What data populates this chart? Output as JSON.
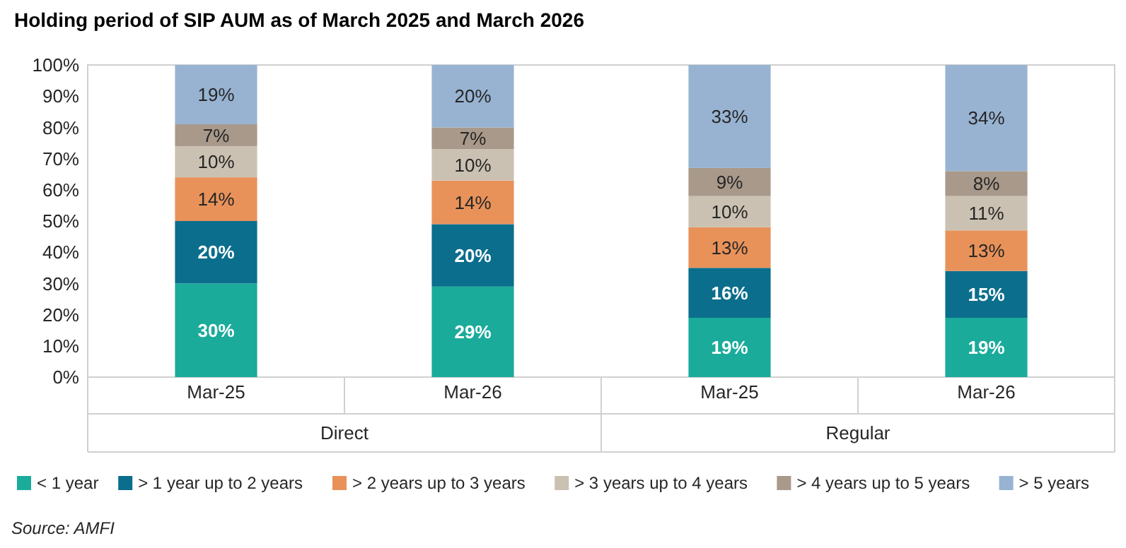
{
  "chart_data": {
    "type": "bar",
    "title": "Holding period of SIP AUM as of March 2025 and March 2026",
    "categories": [
      "Mar-25",
      "Mar-26",
      "Mar-25",
      "Mar-26"
    ],
    "stacked": true,
    "ylim": [
      0,
      100
    ],
    "yticks": [
      {
        "value": 0,
        "label": "0%"
      },
      {
        "value": 10,
        "label": "10%"
      },
      {
        "value": 20,
        "label": "20%"
      },
      {
        "value": 30,
        "label": "30%"
      },
      {
        "value": 40,
        "label": "40%"
      },
      {
        "value": 50,
        "label": "50%"
      },
      {
        "value": 60,
        "label": "60%"
      },
      {
        "value": 70,
        "label": "70%"
      },
      {
        "value": 80,
        "label": "80%"
      },
      {
        "value": 90,
        "label": "90%"
      },
      {
        "value": 100,
        "label": "100%"
      }
    ],
    "grid": false,
    "legend": "bottom",
    "series": [
      {
        "name": "< 1 year",
        "color": "#1aab9b",
        "values": [
          30,
          29,
          19,
          19
        ],
        "value_labels": [
          "30%",
          "29%",
          "19%",
          "19%"
        ]
      },
      {
        "name": "> 1 year up to 2 years",
        "color": "#0b6e8c",
        "values": [
          20,
          20,
          16,
          15
        ],
        "value_labels": [
          "20%",
          "20%",
          "16%",
          "15%"
        ]
      },
      {
        "name": "> 2 years up to 3 years",
        "color": "#e8925a",
        "values": [
          14,
          14,
          13,
          13
        ],
        "value_labels": [
          "14%",
          "14%",
          "13%",
          "13%"
        ]
      },
      {
        "name": "> 3 years up to 4 years",
        "color": "#cbc1b2",
        "values": [
          10,
          10,
          10,
          11
        ],
        "value_labels": [
          "10%",
          "10%",
          "10%",
          "11%"
        ]
      },
      {
        "name": "> 4 years up to 5 years",
        "color": "#a8998a",
        "values": [
          7,
          7,
          9,
          8
        ],
        "value_labels": [
          "7%",
          "7%",
          "9%",
          "8%"
        ]
      },
      {
        "name": "> 5 years",
        "color": "#98b3d2",
        "values": [
          19,
          20,
          33,
          34
        ],
        "value_labels": [
          "19%",
          "20%",
          "33%",
          "34%"
        ]
      }
    ],
    "annotations": [
      "Direct",
      "Regular",
      "Source: AMFI"
    ]
  }
}
